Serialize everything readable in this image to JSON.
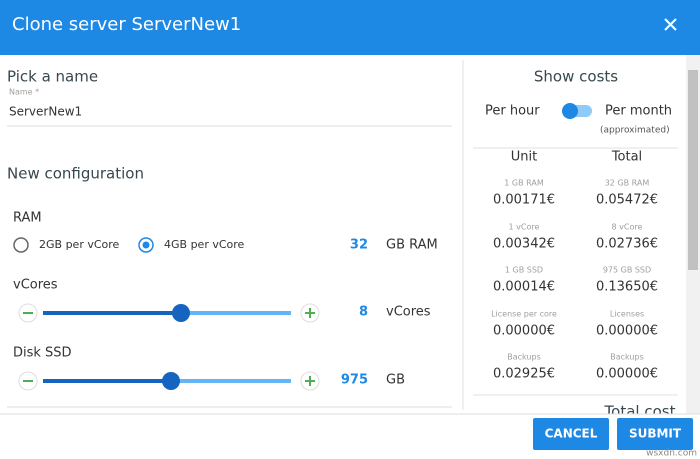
{
  "header": {
    "title": "Clone server ServerNew1"
  },
  "name_section": {
    "heading": "Pick a name",
    "field_label": "Name *",
    "field_value": "ServerNew1"
  },
  "configuration": {
    "heading": "New configuration",
    "ram": {
      "label": "RAM",
      "options": [
        "2GB per vCore",
        "4GB per vCore"
      ],
      "value": 32,
      "unit": "GB RAM"
    },
    "vcores": {
      "label": "vCores",
      "value": 8,
      "unit": "vCores"
    },
    "disk": {
      "label": "Disk SSD",
      "value": 975,
      "unit": "GB"
    }
  },
  "costs": {
    "heading": "Show costs",
    "toggle_left": "Per hour",
    "toggle_right": "Per month",
    "toggle_note": "(approximated)",
    "columns": [
      "Unit",
      "Total"
    ],
    "rows": [
      {
        "unit_label": "1 GB RAM",
        "unit_value": "0.00171€",
        "total_label": "32 GB RAM",
        "total_value": "0.05472€"
      },
      {
        "unit_label": "1 vCore",
        "unit_value": "0.00342€",
        "total_label": "8 vCore",
        "total_value": "0.02736€"
      },
      {
        "unit_label": "1 GB SSD",
        "unit_value": "0.00014€",
        "total_label": "975 GB SSD",
        "total_value": "0.13650€"
      },
      {
        "unit_label": "License per core",
        "unit_value": "0.00000€",
        "total_label": "Licenses",
        "total_value": "0.00000€"
      },
      {
        "unit_label": "Backups",
        "unit_value": "0.02925€",
        "total_label": "Backups",
        "total_value": "0.00000€"
      }
    ],
    "total_heading": "Total cost"
  },
  "footer": {
    "buttons": [
      "CANCEL",
      "SUBMIT"
    ]
  },
  "watermark": "wsxdn.com"
}
